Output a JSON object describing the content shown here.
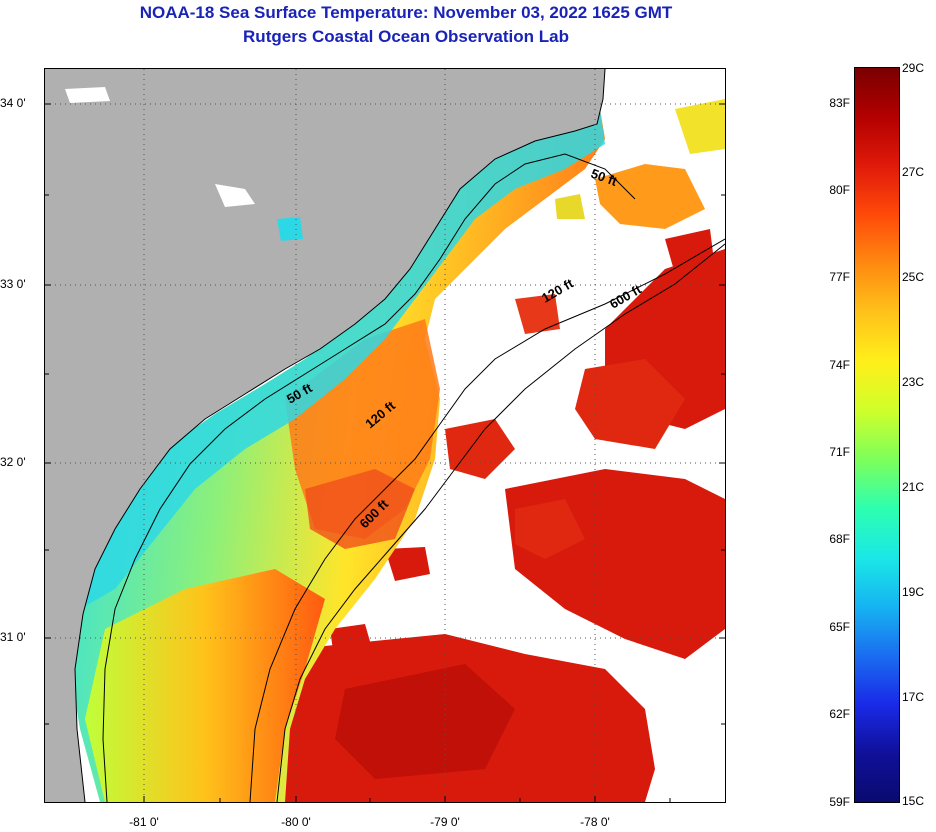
{
  "title": {
    "line1": "NOAA-18 Sea Surface Temperature:  November 03, 2022 1625 GMT",
    "line2": "Rutgers Coastal Ocean Observation Lab"
  },
  "map": {
    "latitude_labels": [
      "34 0'",
      "33 0'",
      "32 0'",
      "31 0'"
    ],
    "longitude_labels": [
      "-81 0'",
      "-80 0'",
      "-79 0'",
      "-78 0'"
    ],
    "isobaths": {
      "shallow": "50 ft",
      "mid": "120 ft",
      "deep": "600 ft"
    },
    "colors": {
      "land": "#b0b0b0",
      "cloud": "#ffffff",
      "nearshore": "#2de0e6",
      "shelf_mid": "#e8ff3a",
      "shelf_outer": "#ff8a1a",
      "gulf_stream": "#e21b0d",
      "gulf_stream_core": "#c80e08"
    }
  },
  "colorbar": {
    "fahrenheit": [
      "83F",
      "80F",
      "77F",
      "74F",
      "71F",
      "68F",
      "65F",
      "62F",
      "59F"
    ],
    "celsius": [
      "29C",
      "27C",
      "25C",
      "23C",
      "21C",
      "19C",
      "17C",
      "15C"
    ],
    "gradient": [
      "#7a0000",
      "#b30000",
      "#e01a0a",
      "#ff4a0a",
      "#ff8a10",
      "#ffc21a",
      "#ffef1a",
      "#cfff2a",
      "#7dff5a",
      "#2dffb0",
      "#1ae8e6",
      "#16b4f2",
      "#1a6ef0",
      "#1a2ae8",
      "#10109a",
      "#0a0a70"
    ]
  }
}
